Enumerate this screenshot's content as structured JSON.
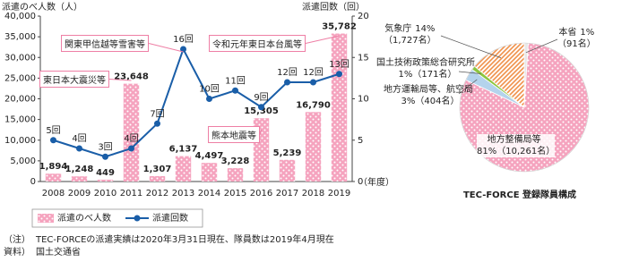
{
  "chart_data": [
    {
      "type": "bar-line",
      "y_label": "派遣のべ人数（人）",
      "y2_label": "派遣回数（回）",
      "x_label": "（年度）",
      "categories": [
        "2008",
        "2009",
        "2010",
        "2011",
        "2012",
        "2013",
        "2014",
        "2015",
        "2016",
        "2017",
        "2018",
        "2019"
      ],
      "series": [
        {
          "name": "派遣のべ人数",
          "type": "bar",
          "color": "#f5a3be",
          "pattern": "dots",
          "values": [
            1894,
            1248,
            449,
            23648,
            1307,
            6137,
            4497,
            3228,
            15305,
            5239,
            16790,
            35782
          ],
          "value_labels": [
            "1,894",
            "1,248",
            "449",
            "23,648",
            "1,307",
            "6,137",
            "4,497",
            "3,228",
            "15,305",
            "5,239",
            "16,790",
            "35,782"
          ]
        },
        {
          "name": "派遣回数",
          "type": "line",
          "axis": "y2",
          "color": "#1a5ea8",
          "values": [
            5,
            4,
            3,
            4,
            7,
            16,
            10,
            11,
            9,
            12,
            12,
            13
          ],
          "value_labels": [
            "5回",
            "4回",
            "3回",
            "4回",
            "7回",
            "16回",
            "10回",
            "11回",
            "9回",
            "12回",
            "12回",
            "13回"
          ]
        }
      ],
      "ylim": [
        0,
        40000
      ],
      "yticks": [
        0,
        {
          "value": 5000,
          "label": "5,000"
        },
        {
          "value": 10000,
          "label": "10,000"
        },
        {
          "value": 15000,
          "label": "15,000"
        },
        {
          "value": 20000,
          "label": "20,000"
        },
        {
          "value": 25000,
          "label": "25,000"
        },
        {
          "value": 30000,
          "label": "30,000"
        },
        {
          "value": 35000,
          "label": "35,000"
        },
        {
          "value": 40000,
          "label": "40,000"
        }
      ],
      "y2lim": [
        0,
        20
      ],
      "y2ticks": [
        0,
        5,
        10,
        15,
        20
      ],
      "grid": false,
      "annotations": [
        "東日本大震災等",
        "関東甲信越等雪害等",
        "熊本地震等",
        "令和元年東日本台風等"
      ]
    },
    {
      "type": "pie",
      "title": "TEC-FORCE 登録隊員構成",
      "categories": [
        "本省",
        "地方整備局等",
        "地方運輸局等、航空局",
        "国土技術政策総合研究所",
        "気象庁"
      ],
      "values": [
        1,
        81,
        3,
        1,
        14
      ],
      "value_labels": [
        "1%",
        "81%",
        "3%",
        "1%",
        "14%"
      ],
      "count_labels": [
        "（91名）",
        "（10,261名）",
        "（404名）",
        "（171名）",
        "（1,727名）"
      ],
      "colors": [
        "#e8e8e8",
        "#f5a3be",
        "#b4d3ec",
        "#8cc63f",
        "#f0914a"
      ],
      "patterns": [
        "none",
        "dots",
        "none",
        "none",
        "hatch"
      ]
    }
  ],
  "notes": [
    {
      "label": "（注）",
      "text": "TEC-FORCEの派遣実績は2020年3月31日現在、隊員数は2019年4月現在"
    },
    {
      "label": "資料）",
      "text": "国土交通省"
    }
  ]
}
